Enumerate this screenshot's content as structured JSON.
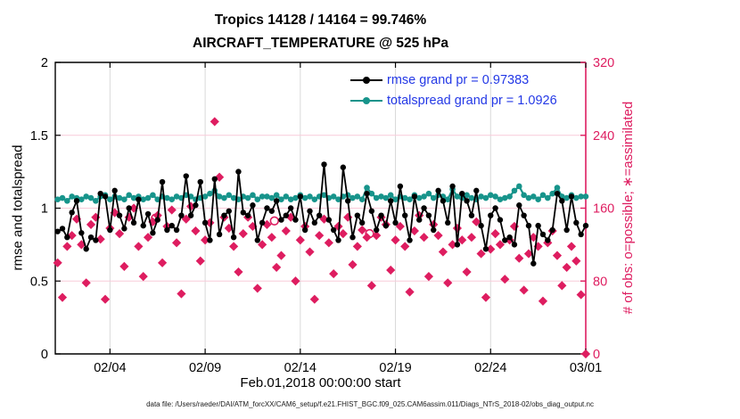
{
  "figure": {
    "title_line1": "Tropics 14128 / 14164 = 99.746%",
    "title_line2": "AIRCRAFT_TEMPERATURE @ 525 hPa",
    "xlabel": "Feb.01,2018 00:00:00 start",
    "ylabel_left": "rmse and totalspread",
    "ylabel_right": "# of obs: o=possible; ∗=assimilated",
    "caption": "data file: /Users/raeder/DAI/ATM_forcXX/CAM6_setup/f.e21.FHIST_BGC.f09_025.CAM6assim.011/Diags_NTrS_2018-02/obs_diag_output.nc",
    "legend": [
      {
        "label": "rmse grand pr = 0.97383",
        "color": "#000000"
      },
      {
        "label": "totalspread grand pr = 1.0926",
        "color": "#17948b"
      }
    ]
  },
  "colors": {
    "rmse": "#000000",
    "totalspread": "#17948b",
    "obs": "#de1d60",
    "legend_text": "#2338e6",
    "grid_h": "#f8ccd9",
    "grid_v": "#d9d9d9",
    "axis_left": "#000000",
    "axis_right": "#de1d60"
  },
  "chart_data": {
    "type": "line",
    "title": "Tropics 14128 / 14164 = 99.746% — AIRCRAFT_TEMPERATURE @ 525 hPa",
    "xlabel": "Feb.01,2018 00:00:00 start",
    "ylabel_left": "rmse and totalspread",
    "ylabel_right": "# of obs: o=possible; ∗=assimilated",
    "xlim": [
      0.125,
      28
    ],
    "ylim_left": [
      0,
      2
    ],
    "ylim_right": [
      0,
      320
    ],
    "grid_x_days": [
      3,
      8,
      13,
      18,
      23
    ],
    "grid_y_left": [
      0.5,
      1,
      1.5
    ],
    "xticks": [
      {
        "day": 3,
        "label": "02/04"
      },
      {
        "day": 8,
        "label": "02/09"
      },
      {
        "day": 13,
        "label": "02/14"
      },
      {
        "day": 18,
        "label": "02/19"
      },
      {
        "day": 23,
        "label": "02/24"
      },
      {
        "day": 28,
        "label": "03/01"
      }
    ],
    "yticks_left": [
      {
        "v": 0,
        "label": "0"
      },
      {
        "v": 0.5,
        "label": "0.5"
      },
      {
        "v": 1,
        "label": "1"
      },
      {
        "v": 1.5,
        "label": "1.5"
      },
      {
        "v": 2,
        "label": "2"
      }
    ],
    "yticks_right": [
      {
        "v": 0,
        "label": "0"
      },
      {
        "v": 80,
        "label": "80"
      },
      {
        "v": 160,
        "label": "160"
      },
      {
        "v": 240,
        "label": "240"
      },
      {
        "v": 320,
        "label": "320"
      }
    ],
    "time_axis": {
      "start": "2018-02-01 06:00:00",
      "interval_hours": 6,
      "points": 112,
      "start_day": 0.25,
      "step_day": 0.25
    },
    "series": [
      {
        "name": "rmse",
        "grand_pr": 0.97383,
        "color": "#000000",
        "values": [
          0.84,
          0.86,
          0.8,
          0.97,
          1.05,
          0.83,
          0.72,
          0.8,
          0.78,
          1.1,
          1.08,
          0.85,
          1.12,
          0.95,
          0.86,
          1.0,
          0.9,
          1.06,
          0.88,
          0.96,
          0.83,
          0.92,
          1.18,
          0.85,
          0.88,
          0.85,
          0.95,
          1.22,
          0.95,
          1.02,
          1.18,
          0.9,
          0.78,
          1.2,
          0.82,
          0.95,
          0.98,
          0.8,
          1.25,
          0.97,
          0.95,
          1.02,
          0.78,
          0.9,
          1.0,
          0.98,
          1.05,
          0.92,
          0.95,
          1.0,
          0.92,
          1.08,
          0.85,
          0.98,
          0.9,
          0.95,
          1.3,
          0.92,
          0.85,
          0.78,
          1.28,
          1.05,
          0.8,
          0.95,
          0.9,
          1.1,
          0.98,
          0.85,
          0.95,
          0.88,
          1.05,
          0.9,
          1.15,
          0.95,
          0.78,
          1.08,
          0.92,
          1.0,
          0.95,
          0.85,
          1.12,
          1.05,
          0.9,
          1.15,
          0.75,
          1.1,
          1.05,
          0.95,
          1.12,
          0.88,
          0.72,
          0.95,
          1.0,
          0.92,
          0.78,
          0.8,
          0.75,
          1.02,
          0.95,
          0.88,
          0.62,
          0.88,
          0.82,
          0.78,
          0.85,
          1.1,
          1.05,
          0.85,
          1.08,
          0.9,
          0.82,
          0.88
        ]
      },
      {
        "name": "totalspread",
        "grand_pr": 1.0926,
        "color": "#17948b",
        "values": [
          1.06,
          1.07,
          1.05,
          1.08,
          1.07,
          1.06,
          1.08,
          1.07,
          1.05,
          1.08,
          1.09,
          1.06,
          1.08,
          1.07,
          1.06,
          1.09,
          1.07,
          1.08,
          1.06,
          1.07,
          1.09,
          1.06,
          1.08,
          1.07,
          1.06,
          1.08,
          1.07,
          1.09,
          1.08,
          1.06,
          1.07,
          1.08,
          1.1,
          1.12,
          1.08,
          1.07,
          1.09,
          1.07,
          1.06,
          1.08,
          1.07,
          1.09,
          1.06,
          1.08,
          1.08,
          1.07,
          1.09,
          1.06,
          1.08,
          1.06,
          1.07,
          1.09,
          1.07,
          1.08,
          1.06,
          1.08,
          1.09,
          1.07,
          1.08,
          1.06,
          1.08,
          1.09,
          1.07,
          1.08,
          1.06,
          1.14,
          1.1,
          1.07,
          1.08,
          1.07,
          1.09,
          1.06,
          1.08,
          1.07,
          1.06,
          1.09,
          1.07,
          1.08,
          1.1,
          1.07,
          1.09,
          1.08,
          1.06,
          1.13,
          1.08,
          1.07,
          1.09,
          1.07,
          1.06,
          1.08,
          1.07,
          1.09,
          1.08,
          1.06,
          1.07,
          1.08,
          1.12,
          1.15,
          1.09,
          1.07,
          1.08,
          1.06,
          1.09,
          1.07,
          1.1,
          1.14,
          1.08,
          1.07,
          1.09,
          1.07,
          1.08,
          1.08
        ]
      }
    ],
    "obs_counts": {
      "axis": "right",
      "color": "#de1d60",
      "possible_total": 14164,
      "assimilated_total": 14128,
      "assimilated_pct": 99.746,
      "assimilated": [
        100,
        62,
        118,
        130,
        148,
        120,
        78,
        142,
        150,
        126,
        60,
        138,
        155,
        132,
        96,
        150,
        160,
        118,
        85,
        128,
        145,
        152,
        100,
        140,
        158,
        122,
        66,
        148,
        162,
        135,
        102,
        125,
        144,
        255,
        194,
        150,
        138,
        118,
        90,
        132,
        150,
        140,
        72,
        120,
        142,
        128,
        95,
        108,
        135,
        150,
        80,
        125,
        140,
        112,
        60,
        130,
        148,
        122,
        88,
        140,
        132,
        150,
        98,
        118,
        136,
        128,
        75,
        130,
        150,
        142,
        92,
        125,
        140,
        118,
        68,
        135,
        152,
        128,
        85,
        142,
        130,
        112,
        78,
        120,
        138,
        125,
        90,
        128,
        145,
        110,
        62,
        115,
        132,
        120,
        82,
        125,
        140,
        105,
        70,
        110,
        128,
        118,
        58,
        122,
        135,
        108,
        75,
        95,
        118,
        102,
        65,
        0
      ],
      "possible_markers": [
        {
          "index": 20,
          "value": 149
        },
        {
          "index": 45,
          "value": 146
        },
        {
          "index": 65,
          "value": 132
        }
      ]
    }
  }
}
